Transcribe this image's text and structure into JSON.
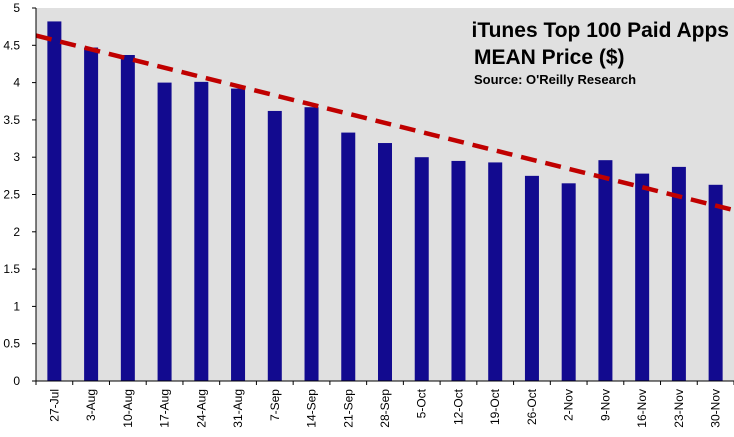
{
  "chart_data": {
    "type": "bar",
    "title_lines": [
      "iTunes Top 100 Paid Apps",
      "MEAN Price ($)"
    ],
    "subtitle": "Source: O'Reilly Research",
    "xlabel": "",
    "ylabel": "",
    "ylim": [
      0,
      5
    ],
    "yticks": [
      "0",
      "0.5",
      "1",
      "1.5",
      "2",
      "2.5",
      "3",
      "3.5",
      "4",
      "4.5",
      "5"
    ],
    "grid": false,
    "legend": "none",
    "categories": [
      "27-Jul",
      "3-Aug",
      "10-Aug",
      "17-Aug",
      "24-Aug",
      "31-Aug",
      "7-Sep",
      "14-Sep",
      "21-Sep",
      "28-Sep",
      "5-Oct",
      "12-Oct",
      "19-Oct",
      "26-Oct",
      "2-Nov",
      "9-Nov",
      "16-Nov",
      "23-Nov",
      "30-Nov"
    ],
    "values": [
      4.82,
      4.47,
      4.37,
      4.0,
      4.01,
      3.92,
      3.62,
      3.67,
      3.33,
      3.19,
      3.0,
      2.95,
      2.93,
      2.75,
      2.65,
      2.96,
      2.78,
      2.87,
      2.63
    ],
    "trendline": {
      "type": "linear",
      "start": 4.63,
      "end": 2.29
    },
    "colors": {
      "bar": "#120A8F",
      "trendline": "#C00000",
      "plot_background": "#E0E0E0",
      "axis": "#000000"
    }
  }
}
